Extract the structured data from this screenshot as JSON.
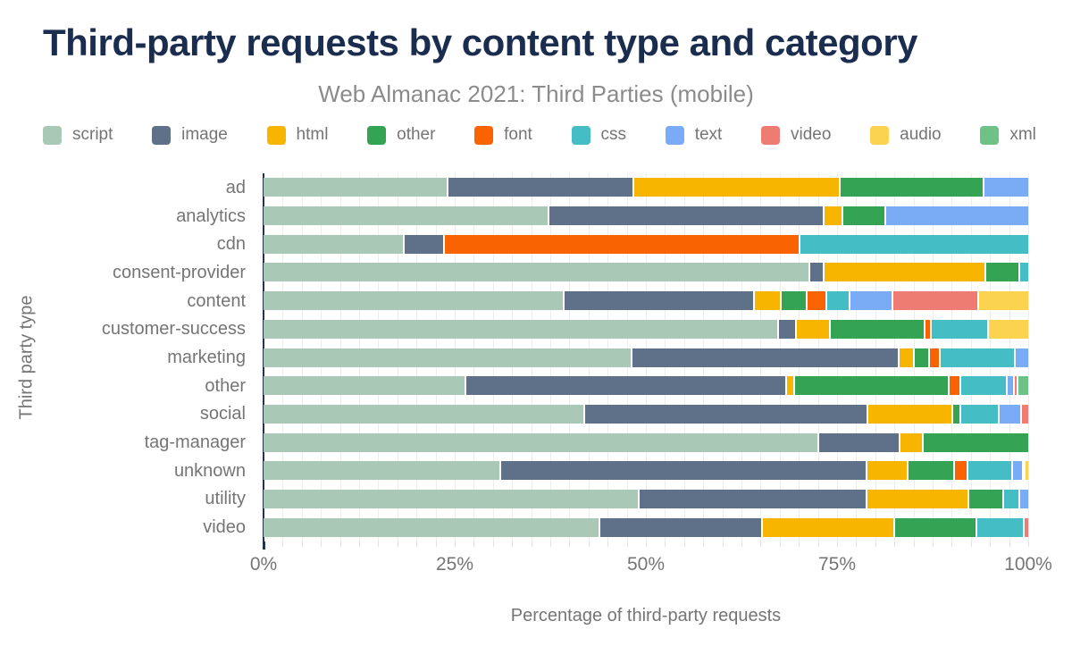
{
  "title": "Third-party requests by content type and category",
  "subtitle": "Web Almanac 2021: Third Parties (mobile)",
  "chart_data": {
    "type": "bar",
    "stacked": true,
    "orientation": "horizontal",
    "title": "Third-party requests by content type and category",
    "subtitle": "Web Almanac 2021: Third Parties (mobile)",
    "xlabel": "Percentage of third-party requests",
    "ylabel": "Third party type",
    "xlim": [
      0,
      100
    ],
    "x_ticks": [
      "0%",
      "25%",
      "50%",
      "75%",
      "100%"
    ],
    "x_tick_values": [
      0,
      25,
      50,
      75,
      100
    ],
    "minor_grid_step": 2.5,
    "legend_position": "top",
    "categories": [
      "ad",
      "analytics",
      "cdn",
      "consent-provider",
      "content",
      "customer-success",
      "marketing",
      "other",
      "social",
      "tag-manager",
      "unknown",
      "utility",
      "video"
    ],
    "series": [
      {
        "name": "script",
        "color": "#a9c9b6",
        "values": [
          24.2,
          37.4,
          18.4,
          71.5,
          39.4,
          67.4,
          48.3,
          26.5,
          42.0,
          72.7,
          31.1,
          49.2,
          44.1
        ]
      },
      {
        "name": "image",
        "color": "#5e7189",
        "values": [
          24.3,
          36.0,
          5.3,
          1.9,
          24.8,
          2.3,
          34.9,
          42.0,
          37.1,
          10.6,
          47.9,
          29.8,
          21.2
        ]
      },
      {
        "name": "html",
        "color": "#f7b500",
        "values": [
          27.0,
          2.4,
          0,
          21.1,
          3.6,
          4.5,
          2.0,
          1.0,
          11.1,
          3.0,
          5.3,
          13.3,
          17.3
        ]
      },
      {
        "name": "other",
        "color": "#34a353",
        "values": [
          18.8,
          5.6,
          0,
          4.5,
          3.4,
          12.4,
          2.0,
          20.2,
          1.0,
          13.7,
          6.1,
          4.5,
          10.7
        ]
      },
      {
        "name": "font",
        "color": "#f96302",
        "values": [
          0,
          0,
          46.5,
          0,
          2.5,
          0.8,
          1.3,
          1.5,
          0,
          0,
          1.8,
          0,
          0
        ]
      },
      {
        "name": "css",
        "color": "#45bdc5",
        "values": [
          0,
          0,
          29.8,
          1.0,
          3.1,
          7.5,
          9.9,
          6.1,
          5.1,
          0,
          5.8,
          2.2,
          6.2
        ]
      },
      {
        "name": "text",
        "color": "#7aabf5",
        "values": [
          5.7,
          18.6,
          0,
          0,
          5.6,
          0,
          1.6,
          0.9,
          2.9,
          0,
          1.4,
          1.0,
          0
        ]
      },
      {
        "name": "video",
        "color": "#ef7c72",
        "values": [
          0,
          0,
          0,
          0,
          11.2,
          0,
          0,
          0.5,
          0.8,
          0,
          0.3,
          0,
          0.5
        ]
      },
      {
        "name": "audio",
        "color": "#fbd34f",
        "values": [
          0,
          0,
          0,
          0,
          6.4,
          5.1,
          0,
          0,
          0,
          0,
          0.3,
          0,
          0
        ]
      },
      {
        "name": "xml",
        "color": "#6fc287",
        "values": [
          0,
          0,
          0,
          0,
          0,
          0,
          0,
          1.3,
          0,
          0,
          0,
          0,
          0
        ]
      }
    ],
    "colors": {
      "accent_navy": "#1b2d4f",
      "axis_line": "#23324f",
      "label_gray": "#757575",
      "grid_gray": "#ededed",
      "background": "#ffffff"
    }
  }
}
